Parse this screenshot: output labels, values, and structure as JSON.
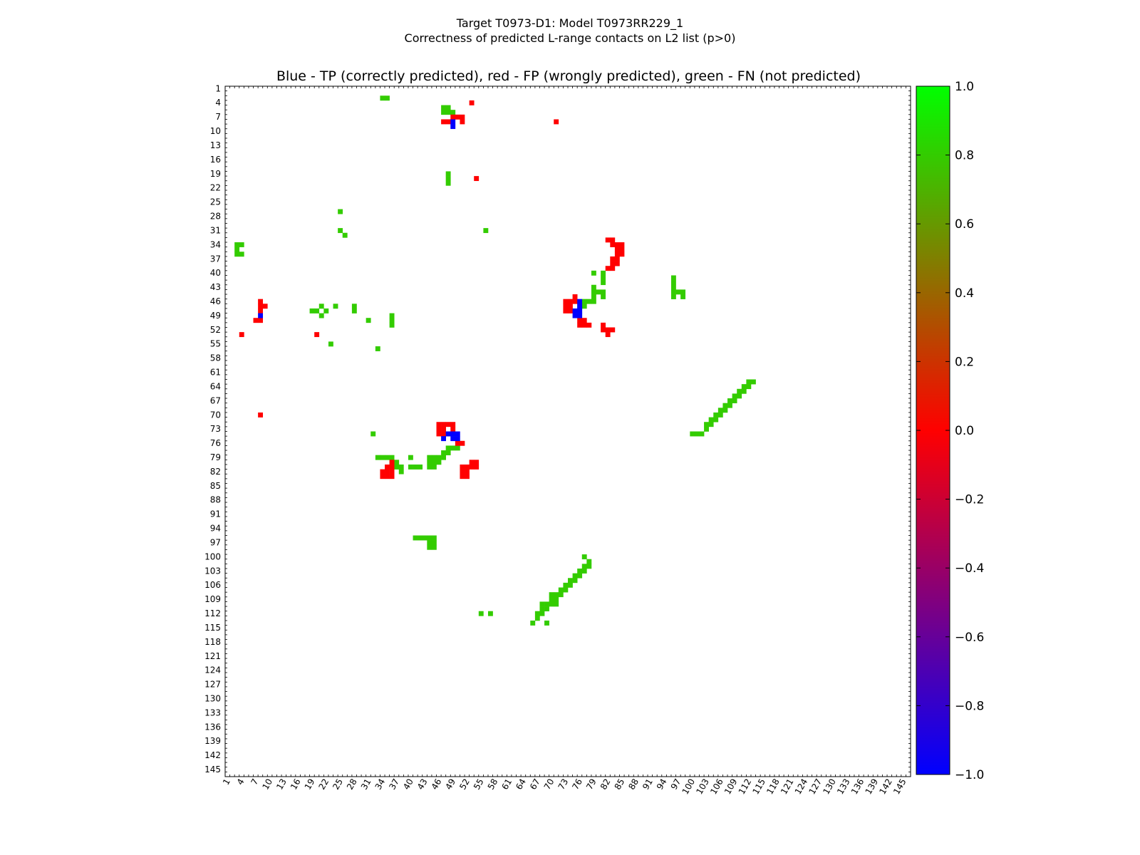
{
  "figure": {
    "title_line1": "Target T0973-D1: Model T0973RR229_1",
    "title_line2": "Correctness of predicted L-range contacts on L2 list (p>0)"
  },
  "chart_data": {
    "type": "heatmap",
    "title": "Blue - TP (correctly predicted), red - FP (wrongly predicted), green - FN (not predicted)",
    "xlabel": "",
    "ylabel": "",
    "xlim": [
      1,
      146
    ],
    "ylim": [
      1,
      146
    ],
    "x_ticks": [
      1,
      4,
      7,
      10,
      13,
      16,
      19,
      22,
      25,
      28,
      31,
      34,
      37,
      40,
      43,
      46,
      49,
      52,
      55,
      58,
      61,
      64,
      67,
      70,
      73,
      76,
      79,
      82,
      85,
      88,
      91,
      94,
      97,
      100,
      103,
      106,
      109,
      112,
      115,
      118,
      121,
      124,
      127,
      130,
      133,
      136,
      139,
      142,
      145
    ],
    "y_ticks": [
      1,
      4,
      7,
      10,
      13,
      16,
      19,
      22,
      25,
      28,
      31,
      34,
      37,
      40,
      43,
      46,
      49,
      52,
      55,
      58,
      61,
      64,
      67,
      70,
      73,
      76,
      79,
      82,
      85,
      88,
      91,
      94,
      97,
      100,
      103,
      106,
      109,
      112,
      115,
      118,
      121,
      124,
      127,
      130,
      133,
      136,
      139,
      142,
      145
    ],
    "colorbar": {
      "min": -1.0,
      "max": 1.0,
      "ticks": [
        "1.0",
        "0.8",
        "0.6",
        "0.4",
        "0.2",
        "0.0",
        "−0.2",
        "−0.4",
        "−0.6",
        "−0.8",
        "−1.0"
      ],
      "colors": [
        "#0000ff",
        "#ff0000",
        "#00ff00"
      ]
    },
    "categories": {
      "TP": {
        "value": -1,
        "color": "#0000ff"
      },
      "FP": {
        "value": 0,
        "color": "#ff0000"
      },
      "FN": {
        "value": 1,
        "color": "#33cc00"
      }
    },
    "cells": {
      "TP": [
        [
          49,
          8
        ],
        [
          49,
          9
        ],
        [
          8,
          49
        ],
        [
          48,
          74
        ],
        [
          49,
          74
        ],
        [
          50,
          74
        ],
        [
          49,
          75
        ],
        [
          50,
          75
        ],
        [
          47,
          75
        ],
        [
          75,
          48
        ],
        [
          76,
          48
        ],
        [
          76,
          47
        ],
        [
          76,
          46
        ],
        [
          75,
          49
        ],
        [
          76,
          49
        ]
      ],
      "FP": [
        [
          4,
          53
        ],
        [
          8,
          70
        ],
        [
          8,
          46
        ],
        [
          8,
          47
        ],
        [
          9,
          47
        ],
        [
          8,
          48
        ],
        [
          8,
          50
        ],
        [
          7,
          50
        ],
        [
          20,
          53
        ],
        [
          34,
          82
        ],
        [
          35,
          82
        ],
        [
          35,
          81
        ],
        [
          36,
          81
        ],
        [
          36,
          80
        ],
        [
          36,
          82
        ],
        [
          34,
          83
        ],
        [
          35,
          83
        ],
        [
          36,
          83
        ],
        [
          46,
          73
        ],
        [
          47,
          73
        ],
        [
          46,
          72
        ],
        [
          47,
          72
        ],
        [
          48,
          72
        ],
        [
          46,
          74
        ],
        [
          47,
          74
        ],
        [
          48,
          74
        ],
        [
          49,
          72
        ],
        [
          49,
          73
        ],
        [
          50,
          76
        ],
        [
          51,
          76
        ],
        [
          51,
          81
        ],
        [
          52,
          81
        ],
        [
          51,
          82
        ],
        [
          52,
          82
        ],
        [
          51,
          83
        ],
        [
          52,
          83
        ],
        [
          53,
          80
        ],
        [
          54,
          80
        ],
        [
          53,
          81
        ],
        [
          54,
          81
        ],
        [
          47,
          8
        ],
        [
          48,
          8
        ],
        [
          49,
          7
        ],
        [
          50,
          7
        ],
        [
          51,
          7
        ],
        [
          51,
          8
        ],
        [
          53,
          4
        ],
        [
          54,
          20
        ],
        [
          71,
          8
        ],
        [
          73,
          46
        ],
        [
          73,
          47
        ],
        [
          73,
          48
        ],
        [
          74,
          46
        ],
        [
          74,
          47
        ],
        [
          74,
          48
        ],
        [
          75,
          45
        ],
        [
          75,
          46
        ],
        [
          76,
          50
        ],
        [
          76,
          51
        ],
        [
          77,
          51
        ],
        [
          77,
          50
        ],
        [
          78,
          51
        ],
        [
          81,
          51
        ],
        [
          81,
          52
        ],
        [
          82,
          52
        ],
        [
          82,
          53
        ],
        [
          83,
          52
        ],
        [
          83,
          33
        ],
        [
          82,
          33
        ],
        [
          83,
          34
        ],
        [
          84,
          34
        ],
        [
          84,
          35
        ],
        [
          85,
          35
        ],
        [
          85,
          34
        ],
        [
          84,
          36
        ],
        [
          85,
          36
        ],
        [
          83,
          37
        ],
        [
          84,
          37
        ],
        [
          83,
          38
        ],
        [
          84,
          38
        ],
        [
          82,
          39
        ],
        [
          83,
          39
        ]
      ],
      "FN": [
        [
          3,
          34
        ],
        [
          3,
          35
        ],
        [
          3,
          36
        ],
        [
          4,
          36
        ],
        [
          4,
          34
        ],
        [
          47,
          5
        ],
        [
          47,
          6
        ],
        [
          48,
          6
        ],
        [
          49,
          6
        ],
        [
          48,
          5
        ],
        [
          36,
          49
        ],
        [
          36,
          50
        ],
        [
          36,
          51
        ],
        [
          33,
          79
        ],
        [
          34,
          79
        ],
        [
          35,
          79
        ],
        [
          36,
          79
        ],
        [
          36,
          80
        ],
        [
          37,
          80
        ],
        [
          37,
          81
        ],
        [
          38,
          81
        ],
        [
          38,
          82
        ],
        [
          33,
          56
        ],
        [
          32,
          74
        ],
        [
          31,
          50
        ],
        [
          34,
          3
        ],
        [
          35,
          3
        ],
        [
          21,
          47
        ],
        [
          20,
          48
        ],
        [
          19,
          48
        ],
        [
          21,
          49
        ],
        [
          22,
          48
        ],
        [
          23,
          55
        ],
        [
          24,
          47
        ],
        [
          25,
          27
        ],
        [
          25,
          31
        ],
        [
          26,
          32
        ],
        [
          28,
          47
        ],
        [
          28,
          48
        ],
        [
          48,
          20
        ],
        [
          48,
          19
        ],
        [
          48,
          21
        ],
        [
          56,
          31
        ],
        [
          57,
          112
        ],
        [
          66,
          114
        ],
        [
          68,
          110
        ],
        [
          70,
          108
        ],
        [
          71,
          110
        ],
        [
          72,
          108
        ],
        [
          100,
          74
        ],
        [
          101,
          74
        ],
        [
          102,
          74
        ],
        [
          103,
          73
        ],
        [
          103,
          72
        ],
        [
          104,
          72
        ],
        [
          104,
          71
        ],
        [
          105,
          71
        ],
        [
          105,
          70
        ],
        [
          106,
          70
        ],
        [
          106,
          69
        ],
        [
          107,
          69
        ],
        [
          107,
          68
        ],
        [
          108,
          68
        ],
        [
          108,
          67
        ],
        [
          109,
          67
        ],
        [
          109,
          66
        ],
        [
          110,
          66
        ],
        [
          110,
          65
        ],
        [
          111,
          65
        ],
        [
          111,
          64
        ],
        [
          112,
          64
        ],
        [
          112,
          63
        ],
        [
          113,
          63
        ],
        [
          96,
          41
        ],
        [
          96,
          42
        ],
        [
          96,
          43
        ],
        [
          96,
          44
        ],
        [
          96,
          45
        ],
        [
          97,
          44
        ],
        [
          98,
          44
        ],
        [
          98,
          45
        ],
        [
          79,
          40
        ],
        [
          81,
          40
        ],
        [
          81,
          41
        ],
        [
          81,
          42
        ],
        [
          79,
          43
        ],
        [
          79,
          44
        ],
        [
          79,
          45
        ],
        [
          80,
          44
        ],
        [
          81,
          44
        ],
        [
          81,
          45
        ],
        [
          77,
          46
        ],
        [
          78,
          46
        ],
        [
          79,
          46
        ],
        [
          77,
          47
        ],
        [
          76,
          47
        ],
        [
          76,
          48
        ],
        [
          76,
          49
        ],
        [
          48,
          77
        ],
        [
          49,
          77
        ],
        [
          50,
          77
        ],
        [
          47,
          78
        ],
        [
          48,
          78
        ],
        [
          47,
          79
        ],
        [
          46,
          79
        ],
        [
          45,
          79
        ],
        [
          44,
          79
        ],
        [
          44,
          80
        ],
        [
          45,
          80
        ],
        [
          46,
          80
        ],
        [
          44,
          81
        ],
        [
          45,
          81
        ],
        [
          40,
          81
        ],
        [
          41,
          81
        ],
        [
          42,
          81
        ],
        [
          40,
          79
        ],
        [
          41,
          96
        ],
        [
          42,
          96
        ],
        [
          43,
          96
        ],
        [
          44,
          96
        ],
        [
          45,
          96
        ],
        [
          44,
          97
        ],
        [
          44,
          98
        ],
        [
          45,
          98
        ],
        [
          45,
          97
        ],
        [
          55,
          112
        ],
        [
          66,
          114
        ],
        [
          67,
          112
        ],
        [
          67,
          113
        ],
        [
          68,
          112
        ],
        [
          68,
          111
        ],
        [
          69,
          111
        ],
        [
          69,
          110
        ],
        [
          70,
          110
        ],
        [
          70,
          109
        ],
        [
          71,
          109
        ],
        [
          71,
          108
        ],
        [
          72,
          108
        ],
        [
          72,
          107
        ],
        [
          73,
          107
        ],
        [
          73,
          106
        ],
        [
          74,
          106
        ],
        [
          74,
          105
        ],
        [
          75,
          105
        ],
        [
          75,
          104
        ],
        [
          76,
          104
        ],
        [
          76,
          103
        ],
        [
          77,
          103
        ],
        [
          77,
          102
        ],
        [
          78,
          102
        ],
        [
          78,
          101
        ],
        [
          69,
          114
        ],
        [
          77,
          100
        ]
      ]
    }
  }
}
